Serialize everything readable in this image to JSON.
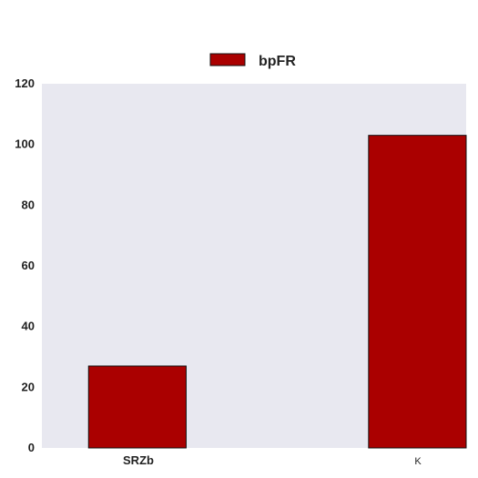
{
  "chart_data": {
    "type": "bar",
    "categories": [
      "SRZb",
      "K"
    ],
    "series": [
      {
        "name": "bpFR",
        "values": [
          27,
          103
        ]
      }
    ],
    "ylim": [
      0,
      120
    ],
    "yticks": [
      0,
      20,
      40,
      60,
      80,
      100,
      120
    ],
    "grid": false,
    "legend_position": "top-center",
    "colors": {
      "bar_fill": "#aa0000",
      "bar_edge": "#111111",
      "plot_background": "#e8e8f0",
      "page_background": "#ffffff"
    }
  }
}
